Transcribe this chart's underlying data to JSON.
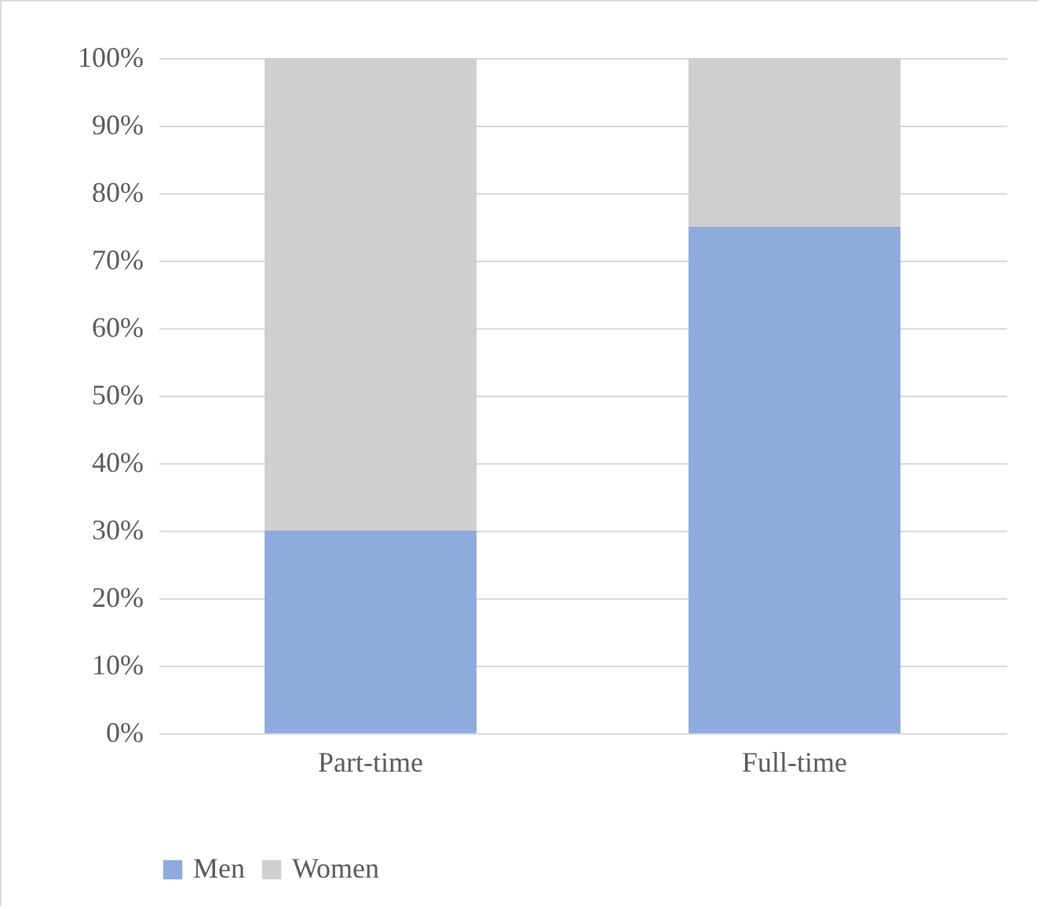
{
  "chart_data": {
    "type": "bar",
    "stacked": true,
    "categories": [
      "Part-time",
      "Full-time"
    ],
    "series": [
      {
        "name": "Men",
        "color": "#8faadc",
        "values": [
          30,
          75
        ]
      },
      {
        "name": "Women",
        "color": "#d0cece",
        "values": [
          70,
          25
        ]
      }
    ],
    "ylim": [
      0,
      100
    ],
    "yticks": [
      {
        "value": 0,
        "label": "0%"
      },
      {
        "value": 10,
        "label": "10%"
      },
      {
        "value": 20,
        "label": "20%"
      },
      {
        "value": 30,
        "label": "30%"
      },
      {
        "value": 40,
        "label": "40%"
      },
      {
        "value": 50,
        "label": "50%"
      },
      {
        "value": 60,
        "label": "60%"
      },
      {
        "value": 70,
        "label": "70%"
      },
      {
        "value": 80,
        "label": "80%"
      },
      {
        "value": 90,
        "label": "90%"
      },
      {
        "value": 100,
        "label": "100%"
      }
    ],
    "grid": "y",
    "legend": "bottom"
  }
}
